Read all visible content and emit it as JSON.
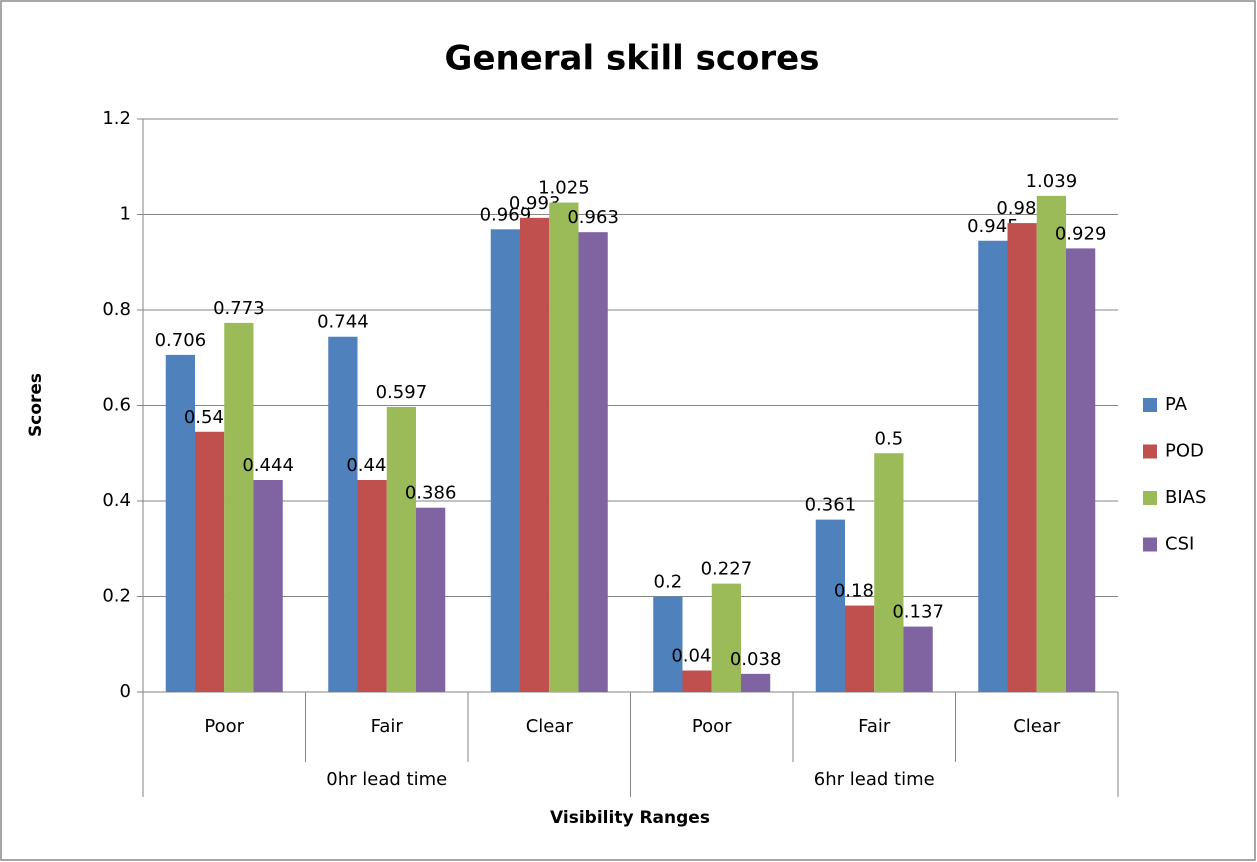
{
  "chart_data": {
    "type": "bar",
    "title": "General skill scores",
    "x_label": "Visibility Ranges",
    "y_label": "Scores",
    "groups": [
      {
        "label": "0hr lead time",
        "categories": [
          "Poor",
          "Fair",
          "Clear"
        ]
      },
      {
        "label": "6hr lead time",
        "categories": [
          "Poor",
          "Fair",
          "Clear"
        ]
      }
    ],
    "series": [
      {
        "name": "PA",
        "color": "#4f81bd",
        "values": [
          0.706,
          0.744,
          0.969,
          0.2,
          0.361,
          0.945
        ]
      },
      {
        "name": "POD",
        "color": "#c0504d",
        "values": [
          0.545,
          0.444,
          0.993,
          0.045,
          0.181,
          0.982
        ]
      },
      {
        "name": "BIAS",
        "color": "#9bbb59",
        "values": [
          0.773,
          0.597,
          1.025,
          0.227,
          0.5,
          1.039
        ]
      },
      {
        "name": "CSI",
        "color": "#8064a2",
        "values": [
          0.444,
          0.386,
          0.963,
          0.038,
          0.137,
          0.929
        ]
      }
    ],
    "ylim": [
      0,
      1.2
    ],
    "yticks": [
      0,
      0.2,
      0.4,
      0.6,
      0.8,
      1,
      1.2
    ],
    "grid": true,
    "legend": "right"
  }
}
